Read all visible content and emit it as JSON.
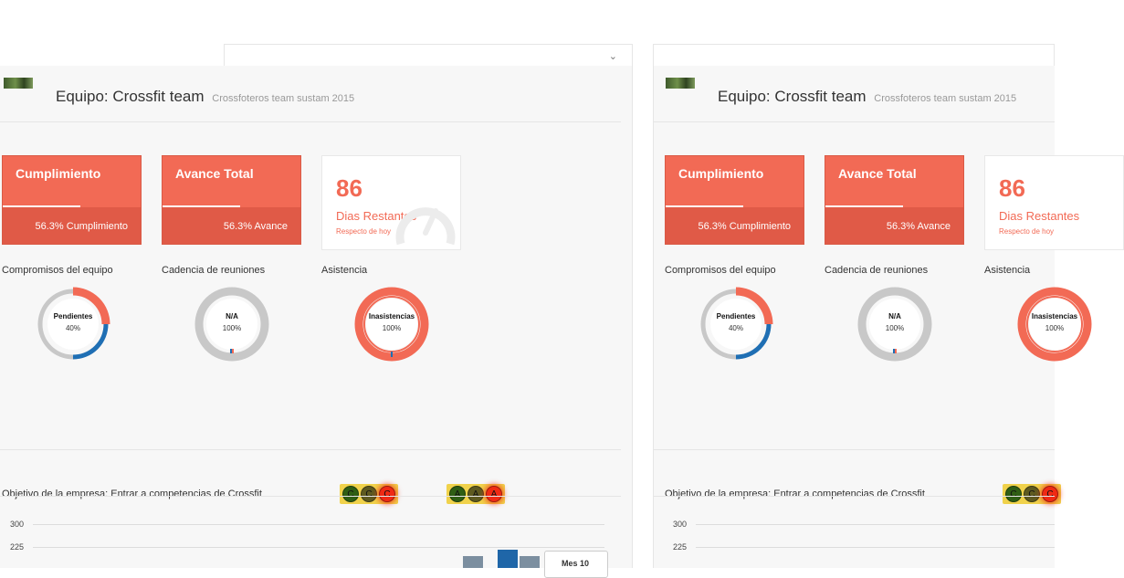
{
  "colors": {
    "accent": "#f26a55",
    "accent_dark": "#e05a47",
    "donut_gray": "#c8c8c8",
    "donut_blue": "#1f6fb4",
    "bar_gray": "#7c8fa0",
    "bar_blue": "#1f66a8",
    "light_yellow": "#f0d24b"
  },
  "panels": [
    {
      "team": {
        "title": "Equipo: Crossfit team",
        "subtitle": "Crossfoteros team sustam 2015"
      },
      "kpis": [
        {
          "label": "Cumplimiento",
          "value": "56.3% Cumplimiento",
          "progress": 0.563
        },
        {
          "label": "Avance Total",
          "value": "56.3% Avance",
          "progress": 0.563
        }
      ],
      "days": {
        "number": "86",
        "label": "Dias Restantes",
        "sub": "Respecto de hoy"
      },
      "sections": [
        {
          "label": "Compromisos del equipo",
          "donut_label": "Pendientes",
          "donut_pct": "40%"
        },
        {
          "label": "Cadencia de reuniones",
          "donut_label": "N/A",
          "donut_pct": "100%"
        },
        {
          "label": "Asistencia",
          "donut_label": "Inasistencias",
          "donut_pct": "100%"
        }
      ],
      "objective": {
        "text": "Objetivo de la empresa: Entrar a competencias de Crossfit",
        "lights_1": [
          "C",
          "C",
          "C"
        ],
        "lights_2": [
          "A",
          "A",
          "A"
        ]
      },
      "chart": {
        "y_ticks": [
          "300",
          "225"
        ],
        "tooltip": "Mes 10"
      }
    },
    {
      "team": {
        "title": "Equipo: Crossfit team",
        "subtitle": "Crossfoteros team sustam 2015"
      },
      "kpis": [
        {
          "label": "Cumplimiento",
          "value": "56.3% Cumplimiento",
          "progress": 0.563
        },
        {
          "label": "Avance Total",
          "value": "56.3% Avance",
          "progress": 0.563
        }
      ],
      "days": {
        "number": "86",
        "label": "Dias Restantes",
        "sub": "Respecto de hoy"
      },
      "sections": [
        {
          "label": "Compromisos del equipo",
          "donut_label": "Pendientes",
          "donut_pct": "40%"
        },
        {
          "label": "Cadencia de reuniones",
          "donut_label": "N/A",
          "donut_pct": "100%"
        },
        {
          "label": "Asistencia",
          "donut_label": "Inasistencias",
          "donut_pct": "100%"
        }
      ],
      "objective": {
        "text": "Objetivo de la empresa: Entrar a competencias de Crossfit",
        "lights_1": [
          "C",
          "C",
          "C"
        ]
      },
      "chart": {
        "y_ticks": [
          "300",
          "225"
        ]
      }
    }
  ],
  "icons": {
    "collapse": "chevron-down-icon",
    "days": "speedometer-icon"
  }
}
